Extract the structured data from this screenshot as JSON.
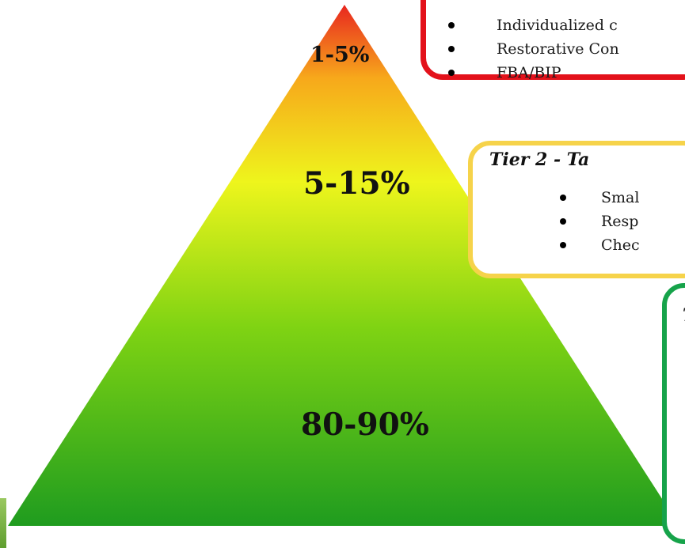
{
  "colors": {
    "pyramid_top": "#e8261f",
    "pyramid_orange": "#f7a81b",
    "pyramid_yellow": "#eef51c",
    "pyramid_green_mid": "#7fd313",
    "pyramid_green_bottom": "#1f9c1f",
    "tier3_border": "#e3121b",
    "tier2_border": "#f6d34a",
    "tier1_border": "#16a34a"
  },
  "pyramid": {
    "top_label": "1-5%",
    "middle_label": "5-15%",
    "bottom_label": "80-90%"
  },
  "tier3_box": {
    "items": [
      "Individualized c",
      "Restorative Con",
      "FBA/BIP"
    ]
  },
  "tier2_box": {
    "title": "Tier 2 - Ta",
    "items": [
      "Smal",
      "Resp",
      "Chec"
    ]
  },
  "tier1_box": {
    "title": "T"
  }
}
